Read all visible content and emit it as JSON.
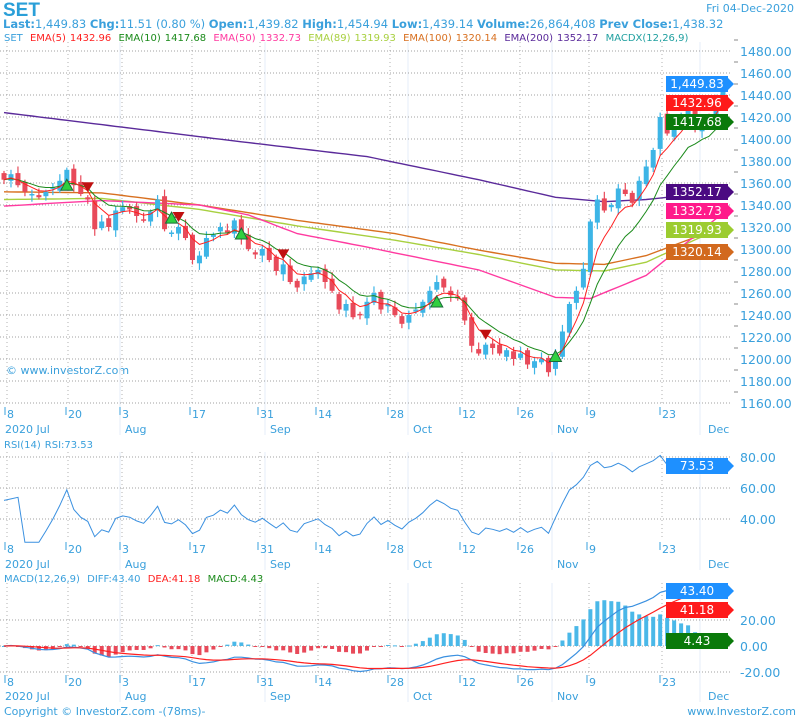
{
  "header": {
    "symbol": "SET",
    "date": "Fri 04-Dec-2020",
    "last_label": "Last:",
    "last": "1,449.83",
    "chg_label": "Chg:",
    "chg": "11.51 (0.80 %)",
    "open_label": "Open:",
    "open": "1,439.82",
    "high_label": "High:",
    "high": "1,454.94",
    "low_label": "Low:",
    "low": "1,439.14",
    "volume_label": "Volume:",
    "volume": "26,864,408",
    "prev_close_label": "Prev Close:",
    "prev_close": "1,438.32"
  },
  "legend": {
    "set": "SET",
    "ema5": "EMA(5)",
    "ema5_val": "1432.96",
    "ema10": "EMA(10)",
    "ema10_val": "1417.68",
    "ema50": "EMA(50)",
    "ema50_val": "1332.73",
    "ema89": "EMA(89)",
    "ema89_val": "1319.93",
    "ema100": "EMA(100)",
    "ema100_val": "1320.14",
    "ema200": "EMA(200)",
    "ema200_val": "1352.17",
    "macdx": "MACDX(12,26,9)"
  },
  "colors": {
    "up": "#3db5e6",
    "down": "#e84a5a",
    "ema5": "#ff2020",
    "ema10": "#1a8a1a",
    "ema50": "#ff3aa0",
    "ema89": "#a8d040",
    "ema100": "#d87020",
    "ema200": "#5a2a9a",
    "accent": "#3aa0dc"
  },
  "watermark": "© www.investorZ.com",
  "rsi": {
    "label": "RSI(14)",
    "value_label": "RSI:73.53",
    "tag": "73.53",
    "axis": [
      "80.00",
      "60.00",
      "40.00"
    ]
  },
  "macd": {
    "label": "MACD(12,26,9)",
    "diff_label": "DIFF:43.40",
    "dea_label": "DEA:41.18",
    "macd_label": "MACD:4.43",
    "diff_tag": "43.40",
    "dea_tag": "41.18",
    "macd_tag": "4.43",
    "axis": [
      "20.00",
      "0.00",
      "-20.00"
    ]
  },
  "footer": {
    "copyright": "Copyright © InvestorZ.com -(78ms)-",
    "site": "www.InvestorZ.com"
  },
  "chart_data": {
    "type": "candlestick",
    "title": "SET",
    "x_day_labels": [
      "8",
      "20",
      "3",
      "17",
      "31",
      "14",
      "28",
      "12",
      "26",
      "9",
      "23"
    ],
    "x_month_labels": [
      "2020 Jul",
      "Aug",
      "Sep",
      "Oct",
      "Nov",
      "Dec"
    ],
    "y_axis_labels": [
      "1480.00",
      "1460.00",
      "1440.00",
      "1420.00",
      "1400.00",
      "1380.00",
      "1360.00",
      "1340.00",
      "1320.00",
      "1300.00",
      "1280.00",
      "1260.00",
      "1240.00",
      "1220.00",
      "1200.00",
      "1180.00",
      "1160.00"
    ],
    "ylim": [
      1160,
      1480
    ],
    "close": [
      1363,
      1368,
      1358,
      1352,
      1350,
      1347,
      1352,
      1356,
      1362,
      1372,
      1358,
      1350,
      1345,
      1318,
      1325,
      1320,
      1335,
      1338,
      1336,
      1330,
      1326,
      1334,
      1345,
      1318,
      1315,
      1320,
      1310,
      1290,
      1294,
      1310,
      1313,
      1320,
      1315,
      1326,
      1310,
      1300,
      1295,
      1300,
      1290,
      1280,
      1286,
      1270,
      1265,
      1275,
      1278,
      1281,
      1270,
      1262,
      1245,
      1250,
      1238,
      1240,
      1252,
      1260,
      1245,
      1250,
      1240,
      1232,
      1240,
      1245,
      1252,
      1262,
      1270,
      1265,
      1258,
      1255,
      1235,
      1212,
      1205,
      1213,
      1210,
      1205,
      1208,
      1200,
      1205,
      1195,
      1198,
      1200,
      1188,
      1205,
      1225,
      1250,
      1262,
      1282,
      1325,
      1345,
      1335,
      1340,
      1355,
      1350,
      1342,
      1362,
      1375,
      1390,
      1420,
      1405,
      1415,
      1420,
      1432,
      1410,
      1418,
      1415,
      1438.32,
      1449.83
    ],
    "last_open": 1439.82,
    "last_high": 1454.94,
    "last_low": 1439.14,
    "ema_keypoints": {
      "ema200": [
        [
          0,
          1424
        ],
        [
          32,
          1399
        ],
        [
          52,
          1384
        ],
        [
          68,
          1363
        ],
        [
          79,
          1347
        ],
        [
          86,
          1343
        ],
        [
          92,
          1345
        ],
        [
          103,
          1352.17
        ]
      ],
      "ema100": [
        [
          0,
          1352
        ],
        [
          14,
          1351
        ],
        [
          28,
          1340
        ],
        [
          42,
          1326
        ],
        [
          56,
          1314
        ],
        [
          68,
          1299
        ],
        [
          79,
          1287
        ],
        [
          86,
          1286
        ],
        [
          92,
          1294
        ],
        [
          103,
          1320.14
        ]
      ],
      "ema89": [
        [
          0,
          1345
        ],
        [
          14,
          1346
        ],
        [
          28,
          1336
        ],
        [
          42,
          1321
        ],
        [
          56,
          1308
        ],
        [
          68,
          1295
        ],
        [
          79,
          1281
        ],
        [
          86,
          1280
        ],
        [
          92,
          1288
        ],
        [
          103,
          1319.93
        ]
      ],
      "ema50": [
        [
          0,
          1339
        ],
        [
          8,
          1342
        ],
        [
          14,
          1344
        ],
        [
          28,
          1340
        ],
        [
          35,
          1331
        ],
        [
          42,
          1314
        ],
        [
          51,
          1303
        ],
        [
          61,
          1290
        ],
        [
          68,
          1281
        ],
        [
          79,
          1256
        ],
        [
          84,
          1255
        ],
        [
          92,
          1276
        ],
        [
          103,
          1332.73
        ]
      ]
    },
    "buy_signals": [
      9,
      24,
      34,
      62,
      79
    ],
    "sell_signals": [
      12,
      25,
      40,
      69
    ],
    "series_last": {
      "ema5": 1432.96,
      "ema10": 1417.68,
      "ema50": 1332.73,
      "ema89": 1319.93,
      "ema100": 1320.14,
      "ema200": 1352.17
    },
    "rsi_ylim": [
      20,
      90
    ],
    "macd_ylim": [
      -25,
      50
    ]
  }
}
